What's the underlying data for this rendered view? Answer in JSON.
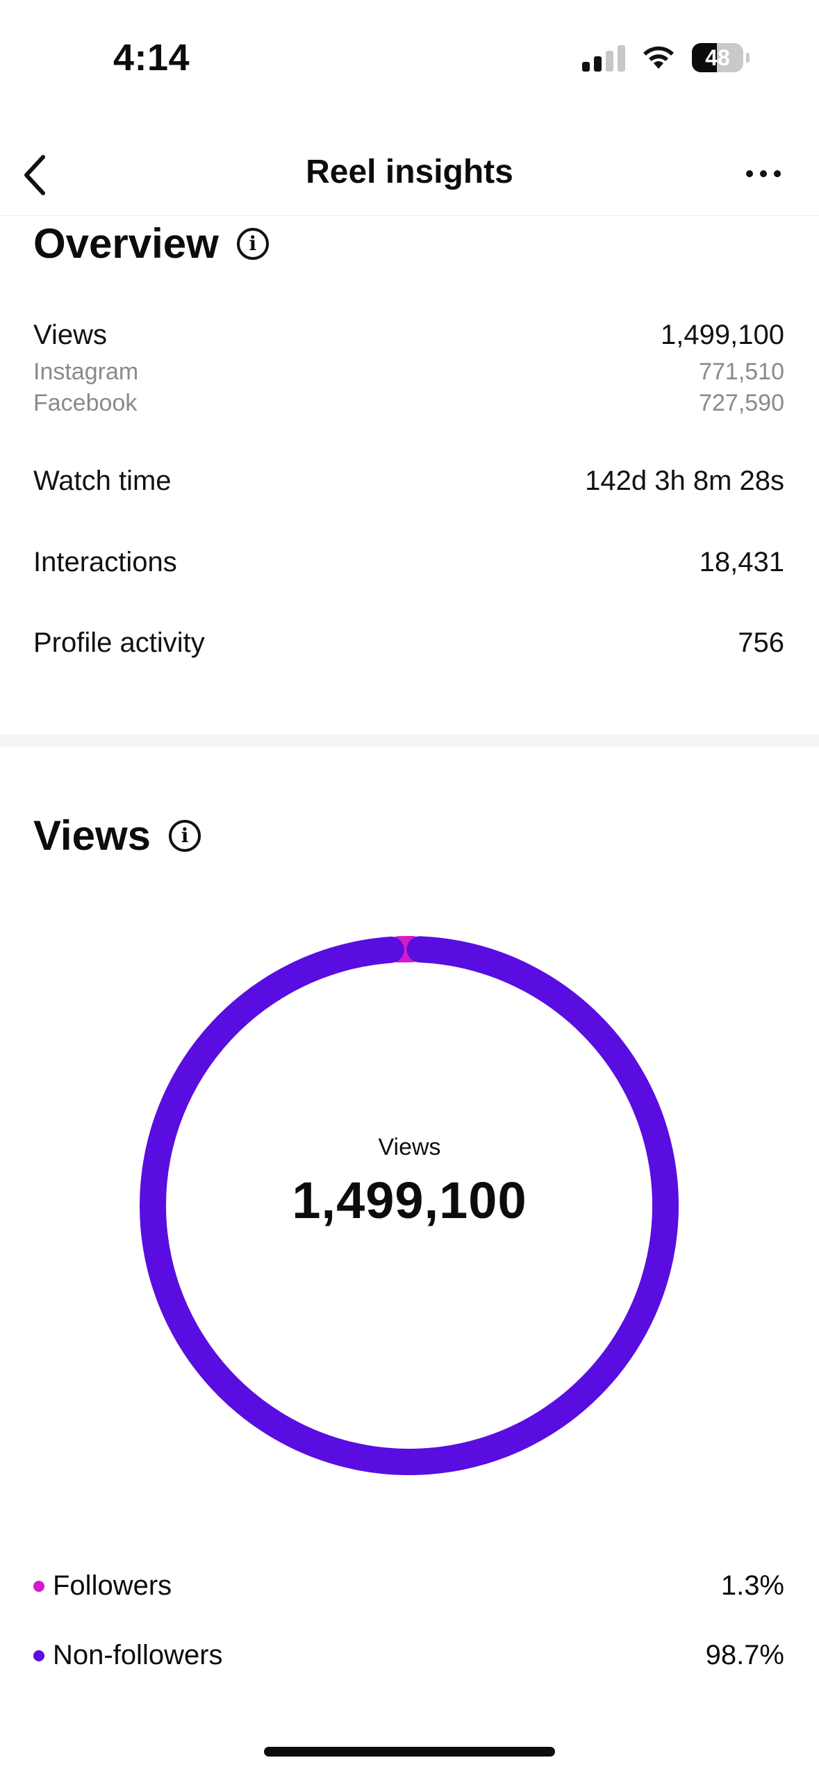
{
  "status_bar": {
    "time": "4:14",
    "battery": "48",
    "battery_level": 0.48
  },
  "nav": {
    "title": "Reel insights"
  },
  "overview": {
    "title": "Overview",
    "views_label": "Views",
    "views_value": "1,499,100",
    "instagram_label": "Instagram",
    "instagram_value": "771,510",
    "facebook_label": "Facebook",
    "facebook_value": "727,590",
    "watch_time_label": "Watch time",
    "watch_time_value": "142d 3h 8m 28s",
    "interactions_label": "Interactions",
    "interactions_value": "18,431",
    "profile_activity_label": "Profile activity",
    "profile_activity_value": "756"
  },
  "views_section": {
    "title": "Views",
    "center_label": "Views",
    "center_value": "1,499,100"
  },
  "chart_data": {
    "type": "pie",
    "donut": true,
    "categories": [
      "Followers",
      "Non-followers"
    ],
    "values": [
      1.3,
      98.7
    ],
    "colors": [
      "#d31bc9",
      "#5a0de0"
    ],
    "title": ""
  },
  "legend": [
    {
      "label": "Followers",
      "value": "1.3%",
      "color": "#d31bc9"
    },
    {
      "label": "Non-followers",
      "value": "98.7%",
      "color": "#5a0de0"
    }
  ]
}
